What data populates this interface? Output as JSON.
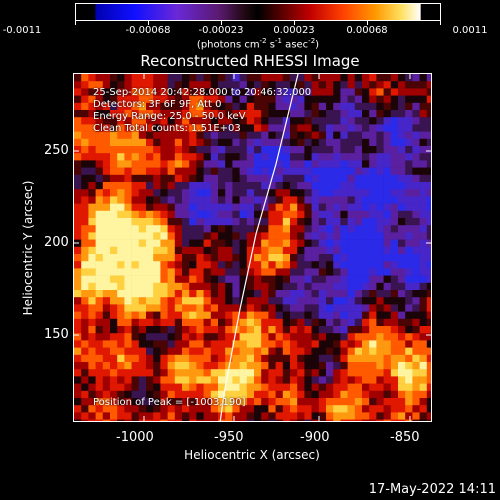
{
  "colorbar": {
    "tick_labels": [
      "-0.0011",
      "-0.00068",
      "-0.00023",
      "0.00023",
      "0.00068",
      "0.0011"
    ],
    "units_prefix": "(photons cm",
    "units_exp1": "-2",
    "units_mid": " s",
    "units_exp2": "-1",
    "units_mid2": " asec",
    "units_exp3": "-2",
    "units_suffix": ")"
  },
  "title": "Reconstructed RHESSI Image",
  "info": {
    "line1": "25-Sep-2014 20:42:28.000 to 20:46:32.000",
    "line2": "Detectors: 3F 6F 9F, Att 0",
    "line3": "Energy Range: 25.0 - 50.0 keV",
    "line4": "Clean    Total counts: 1.51E+03",
    "peak": "Position of Peak = [-1003,190]"
  },
  "x_axis": {
    "label": "Heliocentric X (arcsec)",
    "ticks": [
      "-1000",
      "-950",
      "-900",
      "-850"
    ]
  },
  "y_axis": {
    "label": "Heliocentric Y (arcsec)",
    "ticks": [
      "250",
      "200",
      "150"
    ]
  },
  "footer": "17-May-2022 14:11",
  "colors": {
    "background": "#000000",
    "foreground": "#ffffff"
  }
}
